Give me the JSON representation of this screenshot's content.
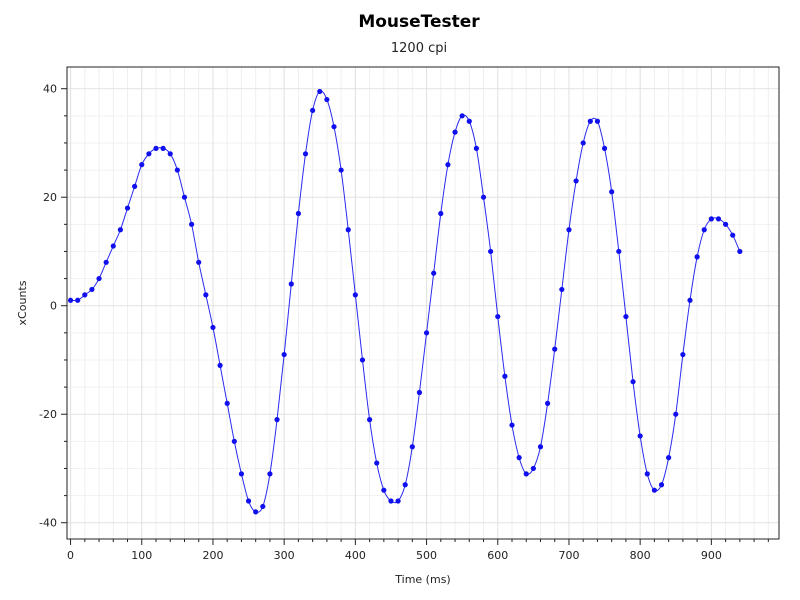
{
  "chart_data": {
    "type": "scatter",
    "title": "MouseTester",
    "subtitle": "1200 cpi",
    "xlabel": "Time (ms)",
    "ylabel": "xCounts",
    "xlim": [
      -5,
      995
    ],
    "ylim": [
      -43,
      44
    ],
    "xticks": [
      0,
      100,
      200,
      300,
      400,
      500,
      600,
      700,
      800,
      900
    ],
    "yticks": [
      -40,
      -20,
      0,
      20,
      40
    ],
    "grid": true,
    "marker_color": "#1010ee",
    "line_color": "#2a2af0",
    "series": [
      {
        "values": [
          [
            0,
            1
          ],
          [
            10,
            1
          ],
          [
            20,
            2
          ],
          [
            30,
            3
          ],
          [
            40,
            5
          ],
          [
            50,
            8
          ],
          [
            60,
            11
          ],
          [
            70,
            14
          ],
          [
            80,
            18
          ],
          [
            90,
            22
          ],
          [
            100,
            26
          ],
          [
            110,
            28
          ],
          [
            120,
            29
          ],
          [
            130,
            29
          ],
          [
            140,
            28
          ],
          [
            150,
            25
          ],
          [
            160,
            20
          ],
          [
            170,
            15
          ],
          [
            180,
            8
          ],
          [
            190,
            2
          ],
          [
            200,
            -4
          ],
          [
            210,
            -11
          ],
          [
            220,
            -18
          ],
          [
            230,
            -25
          ],
          [
            240,
            -31
          ],
          [
            250,
            -36
          ],
          [
            260,
            -38
          ],
          [
            270,
            -37
          ],
          [
            280,
            -31
          ],
          [
            290,
            -21
          ],
          [
            300,
            -9
          ],
          [
            310,
            4
          ],
          [
            320,
            17
          ],
          [
            330,
            28
          ],
          [
            340,
            36
          ],
          [
            350,
            39.5
          ],
          [
            360,
            38
          ],
          [
            370,
            33
          ],
          [
            380,
            25
          ],
          [
            390,
            14
          ],
          [
            400,
            2
          ],
          [
            410,
            -10
          ],
          [
            420,
            -21
          ],
          [
            430,
            -29
          ],
          [
            440,
            -34
          ],
          [
            450,
            -36
          ],
          [
            460,
            -36
          ],
          [
            470,
            -33
          ],
          [
            480,
            -26
          ],
          [
            490,
            -16
          ],
          [
            500,
            -5
          ],
          [
            510,
            6
          ],
          [
            520,
            17
          ],
          [
            530,
            26
          ],
          [
            540,
            32
          ],
          [
            550,
            35
          ],
          [
            560,
            34
          ],
          [
            570,
            29
          ],
          [
            580,
            20
          ],
          [
            590,
            10
          ],
          [
            600,
            -2
          ],
          [
            610,
            -13
          ],
          [
            620,
            -22
          ],
          [
            630,
            -28
          ],
          [
            640,
            -31
          ],
          [
            650,
            -30
          ],
          [
            660,
            -26
          ],
          [
            670,
            -18
          ],
          [
            680,
            -8
          ],
          [
            690,
            3
          ],
          [
            700,
            14
          ],
          [
            710,
            23
          ],
          [
            720,
            30
          ],
          [
            730,
            34
          ],
          [
            740,
            34
          ],
          [
            750,
            29
          ],
          [
            760,
            21
          ],
          [
            770,
            10
          ],
          [
            780,
            -2
          ],
          [
            790,
            -14
          ],
          [
            800,
            -24
          ],
          [
            810,
            -31
          ],
          [
            820,
            -34
          ],
          [
            830,
            -33
          ],
          [
            840,
            -28
          ],
          [
            850,
            -20
          ],
          [
            860,
            -9
          ],
          [
            870,
            1
          ],
          [
            880,
            9
          ],
          [
            890,
            14
          ],
          [
            900,
            16
          ],
          [
            910,
            16
          ],
          [
            920,
            15
          ],
          [
            930,
            13
          ],
          [
            940,
            10
          ]
        ]
      }
    ]
  }
}
